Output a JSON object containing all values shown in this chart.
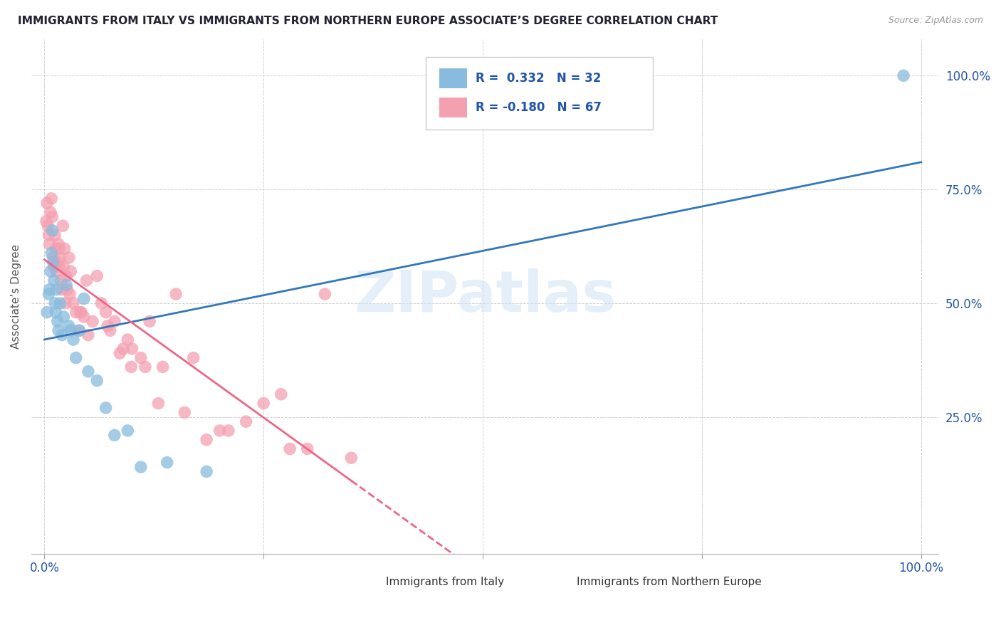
{
  "title": "IMMIGRANTS FROM ITALY VS IMMIGRANTS FROM NORTHERN EUROPE ASSOCIATE’S DEGREE CORRELATION CHART",
  "source": "Source: ZipAtlas.com",
  "ylabel": "Associate’s Degree",
  "ytick_labels": [
    "25.0%",
    "50.0%",
    "75.0%",
    "100.0%"
  ],
  "ytick_positions": [
    0.25,
    0.5,
    0.75,
    1.0
  ],
  "color_italy": "#88bbdd",
  "color_northern": "#f4a0b0",
  "color_italy_line": "#3377bb",
  "color_northern_line": "#ee6688",
  "color_blue_text": "#2255aa",
  "color_title": "#222233",
  "background_color": "#ffffff",
  "watermark": "ZIPatlas",
  "italy_x": [
    0.003,
    0.005,
    0.006,
    0.007,
    0.008,
    0.009,
    0.01,
    0.011,
    0.012,
    0.013,
    0.014,
    0.015,
    0.016,
    0.018,
    0.02,
    0.022,
    0.025,
    0.028,
    0.03,
    0.033,
    0.036,
    0.04,
    0.045,
    0.05,
    0.06,
    0.07,
    0.08,
    0.095,
    0.11,
    0.14,
    0.185,
    0.98
  ],
  "italy_y": [
    0.48,
    0.52,
    0.53,
    0.57,
    0.61,
    0.66,
    0.59,
    0.55,
    0.5,
    0.48,
    0.53,
    0.46,
    0.44,
    0.5,
    0.43,
    0.47,
    0.54,
    0.45,
    0.44,
    0.42,
    0.38,
    0.44,
    0.51,
    0.35,
    0.33,
    0.27,
    0.21,
    0.22,
    0.14,
    0.15,
    0.13,
    1.0
  ],
  "northern_x": [
    0.002,
    0.003,
    0.004,
    0.005,
    0.006,
    0.007,
    0.008,
    0.009,
    0.01,
    0.011,
    0.012,
    0.013,
    0.014,
    0.015,
    0.016,
    0.017,
    0.018,
    0.019,
    0.02,
    0.021,
    0.022,
    0.023,
    0.024,
    0.025,
    0.026,
    0.028,
    0.03,
    0.033,
    0.036,
    0.039,
    0.042,
    0.045,
    0.05,
    0.055,
    0.06,
    0.065,
    0.07,
    0.08,
    0.09,
    0.1,
    0.11,
    0.12,
    0.135,
    0.15,
    0.17,
    0.2,
    0.23,
    0.27,
    0.3,
    0.35,
    0.13,
    0.048,
    0.075,
    0.095,
    0.115,
    0.16,
    0.185,
    0.21,
    0.25,
    0.28,
    0.017,
    0.029,
    0.041,
    0.072,
    0.086,
    0.099,
    0.32
  ],
  "northern_y": [
    0.68,
    0.72,
    0.67,
    0.65,
    0.63,
    0.7,
    0.73,
    0.69,
    0.6,
    0.58,
    0.65,
    0.62,
    0.57,
    0.59,
    0.63,
    0.62,
    0.6,
    0.55,
    0.53,
    0.67,
    0.58,
    0.62,
    0.5,
    0.56,
    0.53,
    0.6,
    0.57,
    0.5,
    0.48,
    0.44,
    0.48,
    0.47,
    0.43,
    0.46,
    0.56,
    0.5,
    0.48,
    0.46,
    0.4,
    0.4,
    0.38,
    0.46,
    0.36,
    0.52,
    0.38,
    0.22,
    0.24,
    0.3,
    0.18,
    0.16,
    0.28,
    0.55,
    0.44,
    0.42,
    0.36,
    0.26,
    0.2,
    0.22,
    0.28,
    0.18,
    0.58,
    0.52,
    0.48,
    0.45,
    0.39,
    0.36,
    0.52
  ],
  "line_italy_x0": 0.0,
  "line_italy_x1": 1.0,
  "line_northern_x0": 0.0,
  "line_northern_solid_end": 0.35,
  "line_northern_x1": 1.0,
  "xmin": 0.0,
  "xmax": 1.0,
  "ymin": 0.0,
  "ymax": 1.05
}
